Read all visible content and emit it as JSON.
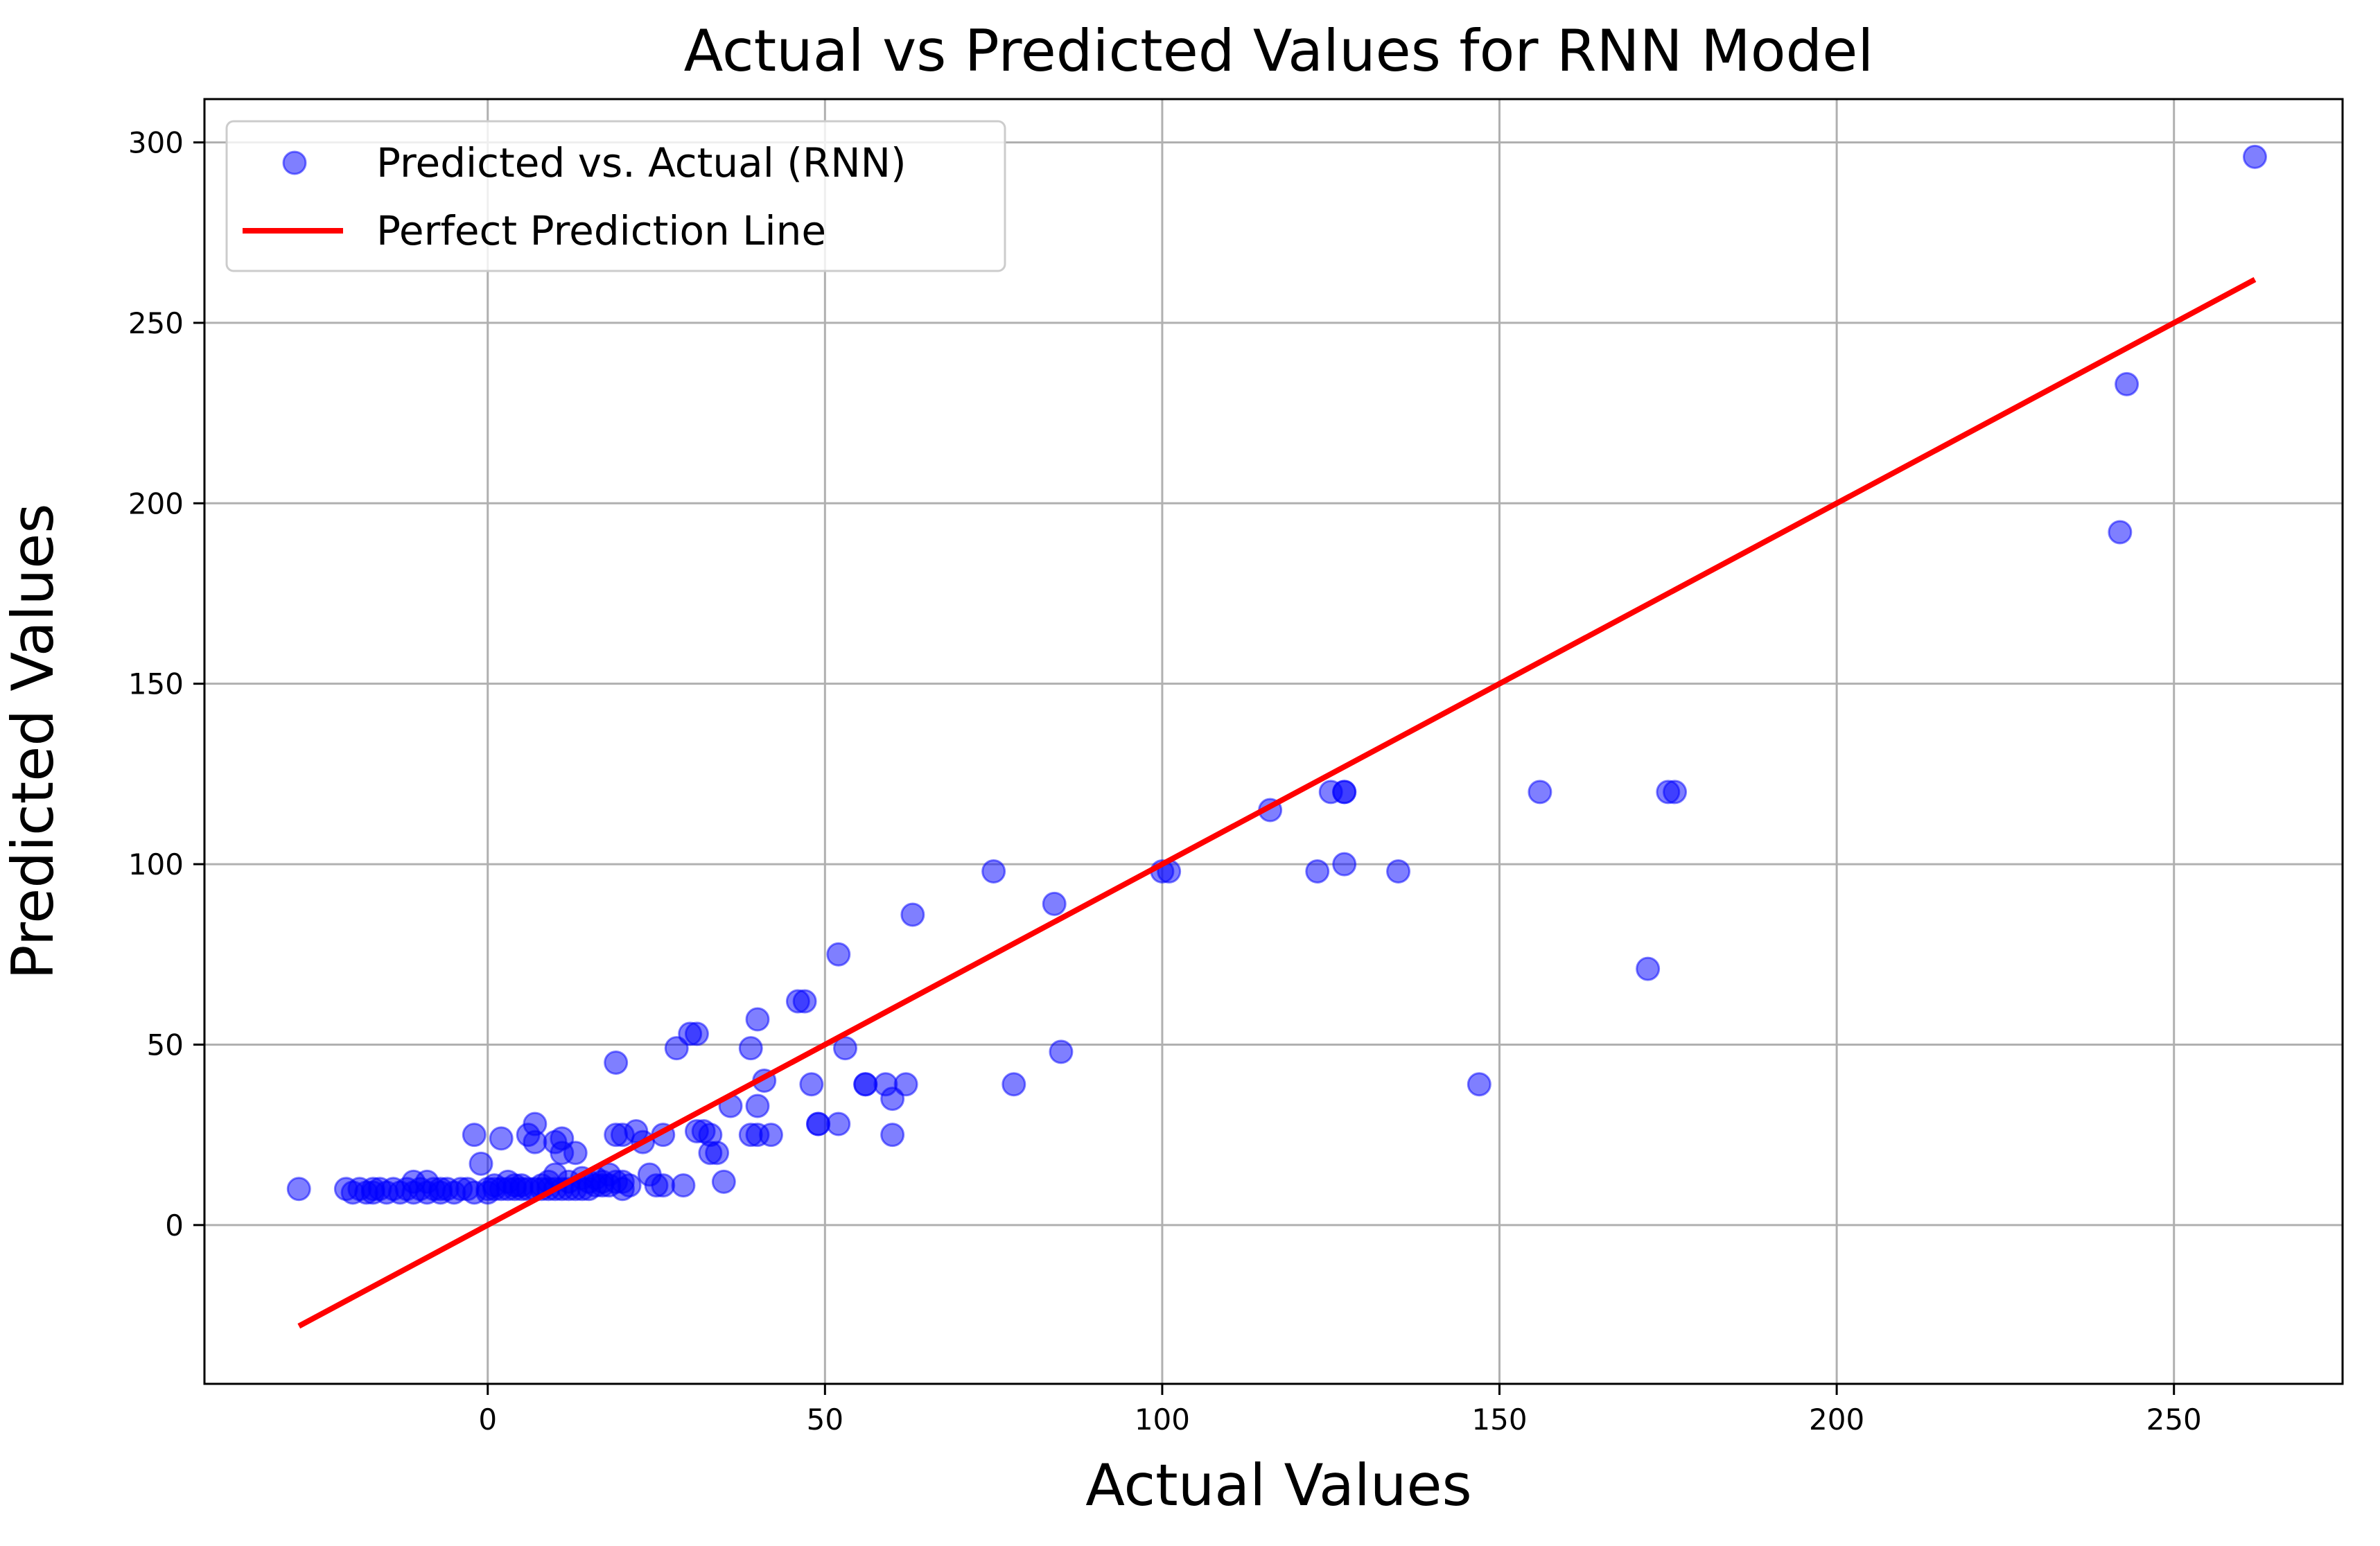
{
  "chart_data": {
    "type": "scatter",
    "title": "Actual vs Predicted Values for RNN Model",
    "xlabel": "Actual Values",
    "ylabel": "Predicted Values",
    "xlim": [
      -42,
      275
    ],
    "ylim": [
      -44,
      312
    ],
    "x_ticks": [
      0,
      50,
      100,
      150,
      200,
      250
    ],
    "y_ticks": [
      0,
      50,
      100,
      150,
      200,
      250,
      300
    ],
    "grid": true,
    "legend_position": "top-left",
    "series": [
      {
        "name": "Predicted vs. Actual (RNN)",
        "kind": "scatter",
        "color": "#0000ff",
        "opacity": 0.5,
        "points": [
          [
            -28,
            10
          ],
          [
            -21,
            10
          ],
          [
            -20,
            9
          ],
          [
            -19,
            10
          ],
          [
            -18,
            9
          ],
          [
            -17,
            10
          ],
          [
            -17,
            9
          ],
          [
            -16,
            10
          ],
          [
            -15,
            9
          ],
          [
            -14,
            10
          ],
          [
            -13,
            9
          ],
          [
            -12,
            10
          ],
          [
            -11,
            9
          ],
          [
            -11,
            12
          ],
          [
            -10,
            10
          ],
          [
            -9,
            9
          ],
          [
            -9,
            12
          ],
          [
            -8,
            10
          ],
          [
            -7,
            10
          ],
          [
            -7,
            9
          ],
          [
            -6,
            10
          ],
          [
            -5,
            9
          ],
          [
            -4,
            10
          ],
          [
            -3,
            10
          ],
          [
            -2,
            9
          ],
          [
            -2,
            25
          ],
          [
            -1,
            17
          ],
          [
            0,
            10
          ],
          [
            0,
            9
          ],
          [
            1,
            10
          ],
          [
            1,
            11
          ],
          [
            2,
            10
          ],
          [
            2,
            24
          ],
          [
            3,
            10
          ],
          [
            3,
            12
          ],
          [
            4,
            10
          ],
          [
            4,
            11
          ],
          [
            5,
            10
          ],
          [
            5,
            11
          ],
          [
            6,
            10
          ],
          [
            6,
            25
          ],
          [
            7,
            10
          ],
          [
            7,
            23
          ],
          [
            7,
            28
          ],
          [
            8,
            10
          ],
          [
            8,
            11
          ],
          [
            9,
            10
          ],
          [
            9,
            12
          ],
          [
            10,
            10
          ],
          [
            10,
            14
          ],
          [
            10,
            23
          ],
          [
            11,
            10
          ],
          [
            11,
            20
          ],
          [
            11,
            24
          ],
          [
            12,
            10
          ],
          [
            12,
            12
          ],
          [
            13,
            10
          ],
          [
            13,
            20
          ],
          [
            14,
            10
          ],
          [
            14,
            13
          ],
          [
            15,
            10
          ],
          [
            15,
            12
          ],
          [
            16,
            11
          ],
          [
            16,
            13
          ],
          [
            17,
            11
          ],
          [
            17,
            12
          ],
          [
            18,
            11
          ],
          [
            18,
            14
          ],
          [
            19,
            12
          ],
          [
            19,
            25
          ],
          [
            19,
            45
          ],
          [
            20,
            10
          ],
          [
            20,
            12
          ],
          [
            20,
            25
          ],
          [
            21,
            11
          ],
          [
            22,
            26
          ],
          [
            23,
            23
          ],
          [
            24,
            14
          ],
          [
            25,
            11
          ],
          [
            26,
            11
          ],
          [
            26,
            25
          ],
          [
            28,
            49
          ],
          [
            29,
            11
          ],
          [
            30,
            53
          ],
          [
            31,
            26
          ],
          [
            31,
            53
          ],
          [
            32,
            26
          ],
          [
            33,
            20
          ],
          [
            33,
            25
          ],
          [
            34,
            20
          ],
          [
            35,
            12
          ],
          [
            36,
            33
          ],
          [
            39,
            25
          ],
          [
            39,
            49
          ],
          [
            40,
            25
          ],
          [
            40,
            33
          ],
          [
            40,
            57
          ],
          [
            41,
            40
          ],
          [
            42,
            25
          ],
          [
            46,
            62
          ],
          [
            47,
            62
          ],
          [
            48,
            39
          ],
          [
            49,
            28
          ],
          [
            49,
            28
          ],
          [
            52,
            28
          ],
          [
            52,
            75
          ],
          [
            53,
            49
          ],
          [
            56,
            39
          ],
          [
            56,
            39
          ],
          [
            59,
            39
          ],
          [
            60,
            25
          ],
          [
            60,
            35
          ],
          [
            62,
            39
          ],
          [
            63,
            86
          ],
          [
            75,
            98
          ],
          [
            78,
            39
          ],
          [
            84,
            89
          ],
          [
            85,
            48
          ],
          [
            100,
            98
          ],
          [
            101,
            98
          ],
          [
            116,
            115
          ],
          [
            123,
            98
          ],
          [
            125,
            120
          ],
          [
            127,
            120
          ],
          [
            127,
            100
          ],
          [
            127,
            120
          ],
          [
            135,
            98
          ],
          [
            147,
            39
          ],
          [
            156,
            120
          ],
          [
            172,
            71
          ],
          [
            175,
            120
          ],
          [
            176,
            120
          ],
          [
            242,
            192
          ],
          [
            243,
            233
          ],
          [
            262,
            296
          ]
        ]
      },
      {
        "name": "Perfect Prediction Line",
        "kind": "line",
        "color": "#ff0000",
        "points": [
          [
            -28,
            -28
          ],
          [
            262,
            262
          ]
        ]
      }
    ]
  }
}
